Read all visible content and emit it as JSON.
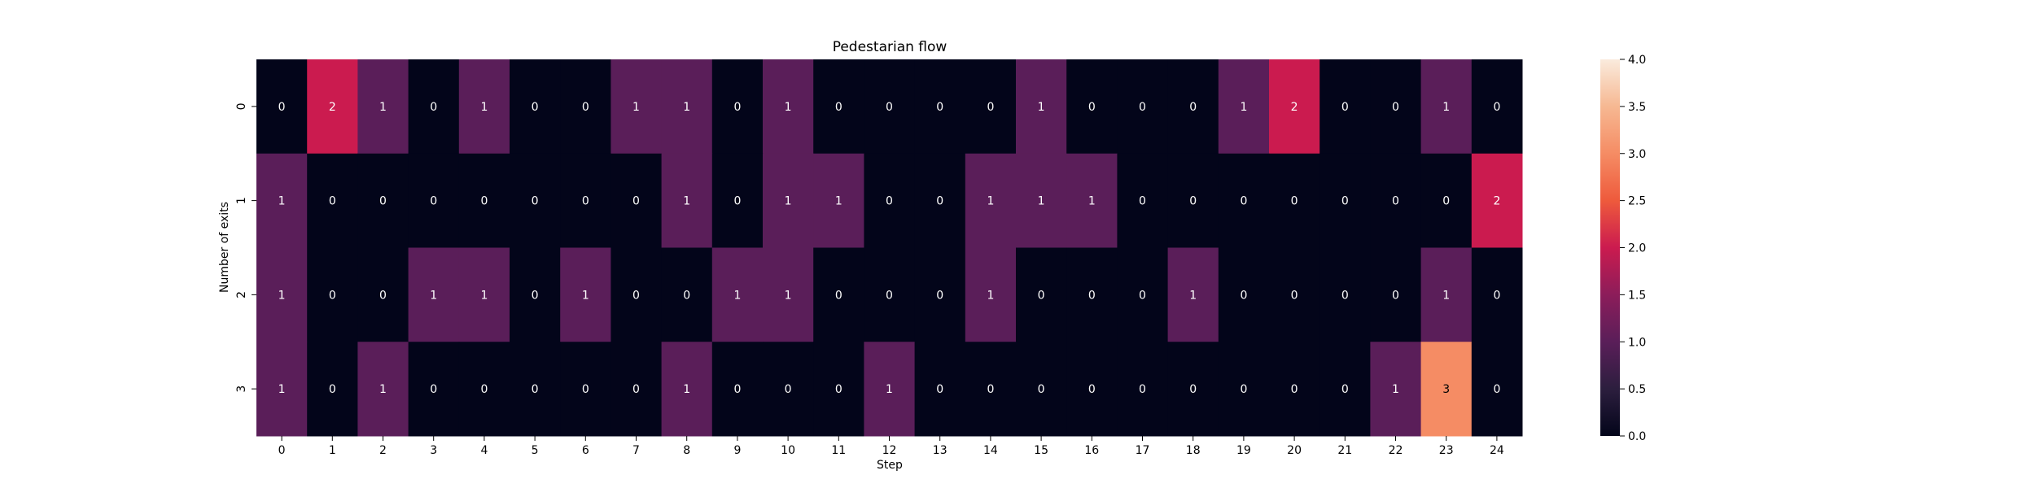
{
  "chart_data": {
    "type": "heatmap",
    "title": "Pedestarian flow",
    "xlabel": "Step",
    "ylabel": "Number of exits",
    "x_categories": [
      "0",
      "1",
      "2",
      "3",
      "4",
      "5",
      "6",
      "7",
      "8",
      "9",
      "10",
      "11",
      "12",
      "13",
      "14",
      "15",
      "16",
      "17",
      "18",
      "19",
      "20",
      "21",
      "22",
      "23",
      "24"
    ],
    "y_categories": [
      "0",
      "1",
      "2",
      "3"
    ],
    "values": [
      [
        0,
        2,
        1,
        0,
        1,
        0,
        0,
        1,
        1,
        0,
        1,
        0,
        0,
        0,
        0,
        1,
        0,
        0,
        0,
        1,
        2,
        0,
        0,
        1,
        0
      ],
      [
        1,
        0,
        0,
        0,
        0,
        0,
        0,
        0,
        1,
        0,
        1,
        1,
        0,
        0,
        1,
        1,
        1,
        0,
        0,
        0,
        0,
        0,
        0,
        0,
        2
      ],
      [
        1,
        0,
        0,
        1,
        1,
        0,
        1,
        0,
        0,
        1,
        1,
        0,
        0,
        0,
        1,
        0,
        0,
        0,
        1,
        0,
        0,
        0,
        0,
        1,
        0
      ],
      [
        1,
        0,
        1,
        0,
        0,
        0,
        0,
        0,
        1,
        0,
        0,
        0,
        1,
        0,
        0,
        0,
        0,
        0,
        0,
        0,
        0,
        0,
        1,
        3,
        0
      ]
    ],
    "colorbar": {
      "min": 0,
      "max": 4,
      "ticks": [
        "0.0",
        "0.5",
        "1.0",
        "1.5",
        "2.0",
        "2.5",
        "3.0",
        "3.5",
        "4.0"
      ],
      "colormap": "rocket"
    },
    "annotations": true,
    "annotation_colors": {
      "dark_cell": "#ffffff",
      "light_cell": "#000000"
    }
  }
}
